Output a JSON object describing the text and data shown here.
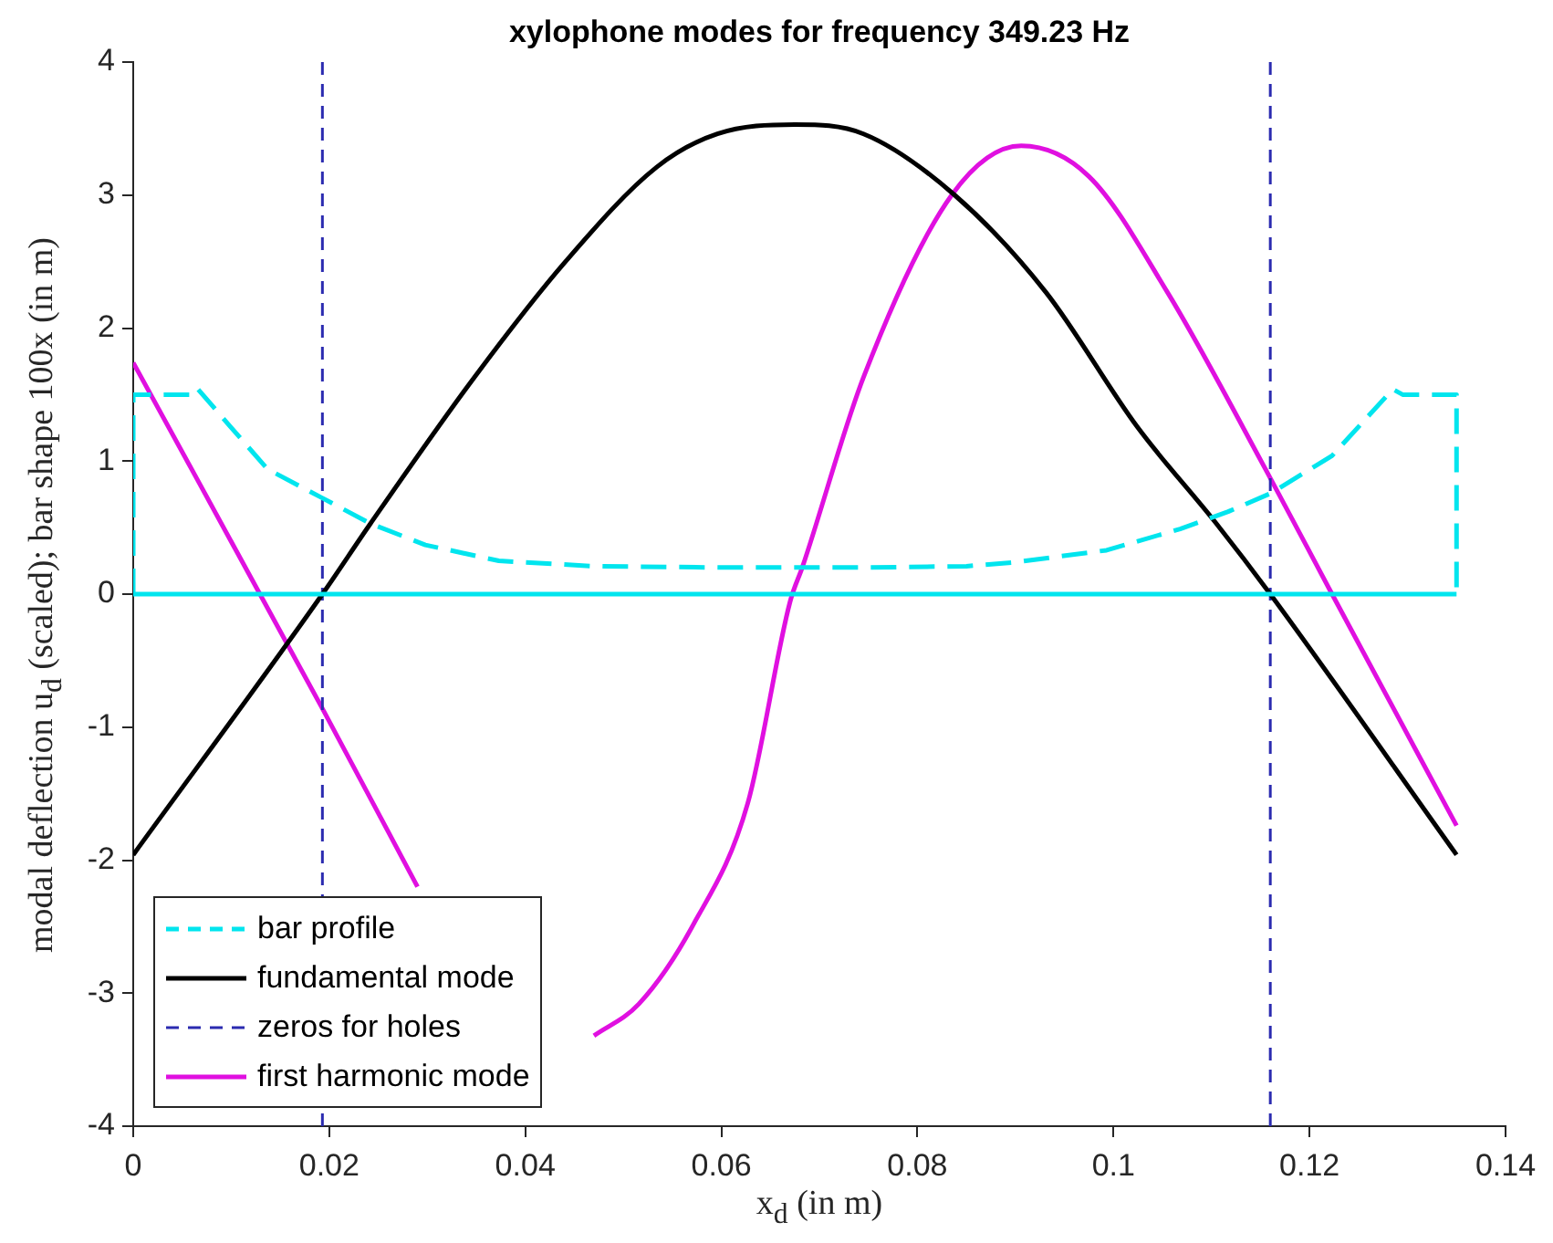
{
  "chart_data": {
    "type": "line",
    "title": "xylophone modes for frequency 349.23 Hz",
    "xlabel": "x$_{d}$ (in m)",
    "ylabel": "modal deflection u$_{d}$ (scaled); bar shape 100x (in m)",
    "xlim": [
      0,
      0.14
    ],
    "xticks": [
      0,
      0.02,
      0.04,
      0.06,
      0.08,
      0.1,
      0.12,
      0.14
    ],
    "ylim": [
      -4,
      4
    ],
    "yticks": [
      -4,
      -3,
      -2,
      -1,
      0,
      1,
      2,
      3,
      4
    ],
    "grid": false,
    "legend": "bottom left",
    "marker": "none",
    "series": [
      {
        "name": "bar profile",
        "color": "#00e5ee",
        "line_style": "dashed",
        "x": [
          0,
          0,
          0.0059,
          0.0065,
          0.0099,
          0.0137,
          0.0191,
          0.0242,
          0.0298,
          0.0373,
          0.047,
          0.06,
          0.075,
          0.085,
          0.09,
          0.0993,
          0.1068,
          0.1117,
          0.1161,
          0.1223,
          0.1285,
          0.1295,
          0.135,
          0.135
        ],
        "values": [
          0,
          1.5,
          1.5,
          1.55,
          1.26,
          0.94,
          0.73,
          0.53,
          0.37,
          0.25,
          0.21,
          0.2,
          0.2,
          0.21,
          0.24,
          0.33,
          0.49,
          0.62,
          0.76,
          1.04,
          1.54,
          1.5,
          1.5,
          0
        ]
      },
      {
        "color": "#00e5ee",
        "line_style": "solid",
        "x": [
          0,
          0.135
        ],
        "values": [
          0,
          0
        ]
      },
      {
        "name": "fundamental mode",
        "color": "#000000",
        "line_style": "solid",
        "x": [
          0,
          0.0193,
          0.0242,
          0.0348,
          0.0441,
          0.0534,
          0.0596,
          0.0675,
          0.0745,
          0.0838,
          0.0931,
          0.1024,
          0.1105,
          0.116,
          0.135
        ],
        "values": [
          -1.96,
          0,
          0.53,
          1.63,
          2.5,
          3.21,
          3.46,
          3.53,
          3.46,
          3.0,
          2.27,
          1.26,
          0.53,
          0,
          -1.96
        ]
      },
      {
        "name": "zeros for holes",
        "color": "#2b2bb0",
        "line_style": "dashed",
        "x": [
          0.0193,
          0.0193
        ],
        "values": [
          -4,
          4
        ]
      },
      {
        "color": "#2b2bb0",
        "line_style": "dashed",
        "x": [
          0.116,
          0.116
        ],
        "values": [
          -4,
          4
        ]
      },
      {
        "name": "first harmonic mode",
        "color": "#e010e0",
        "line_style": "solid",
        "x": [
          0,
          0.0193,
          0.029,
          0.038,
          0.047,
          0.0516,
          0.0571,
          0.0627,
          0.067,
          0.0683,
          0.0745,
          0.0835,
          0.0906,
          0.0975,
          0.1055,
          0.1158,
          0.1223,
          0.135
        ],
        "values": [
          1.74,
          -0.86,
          -2.2,
          null,
          -3.32,
          -3.08,
          -2.49,
          -1.57,
          -0.06,
          0.21,
          1.63,
          3.0,
          3.37,
          3.14,
          2.27,
          0.9,
          0,
          -1.74
        ]
      }
    ]
  }
}
